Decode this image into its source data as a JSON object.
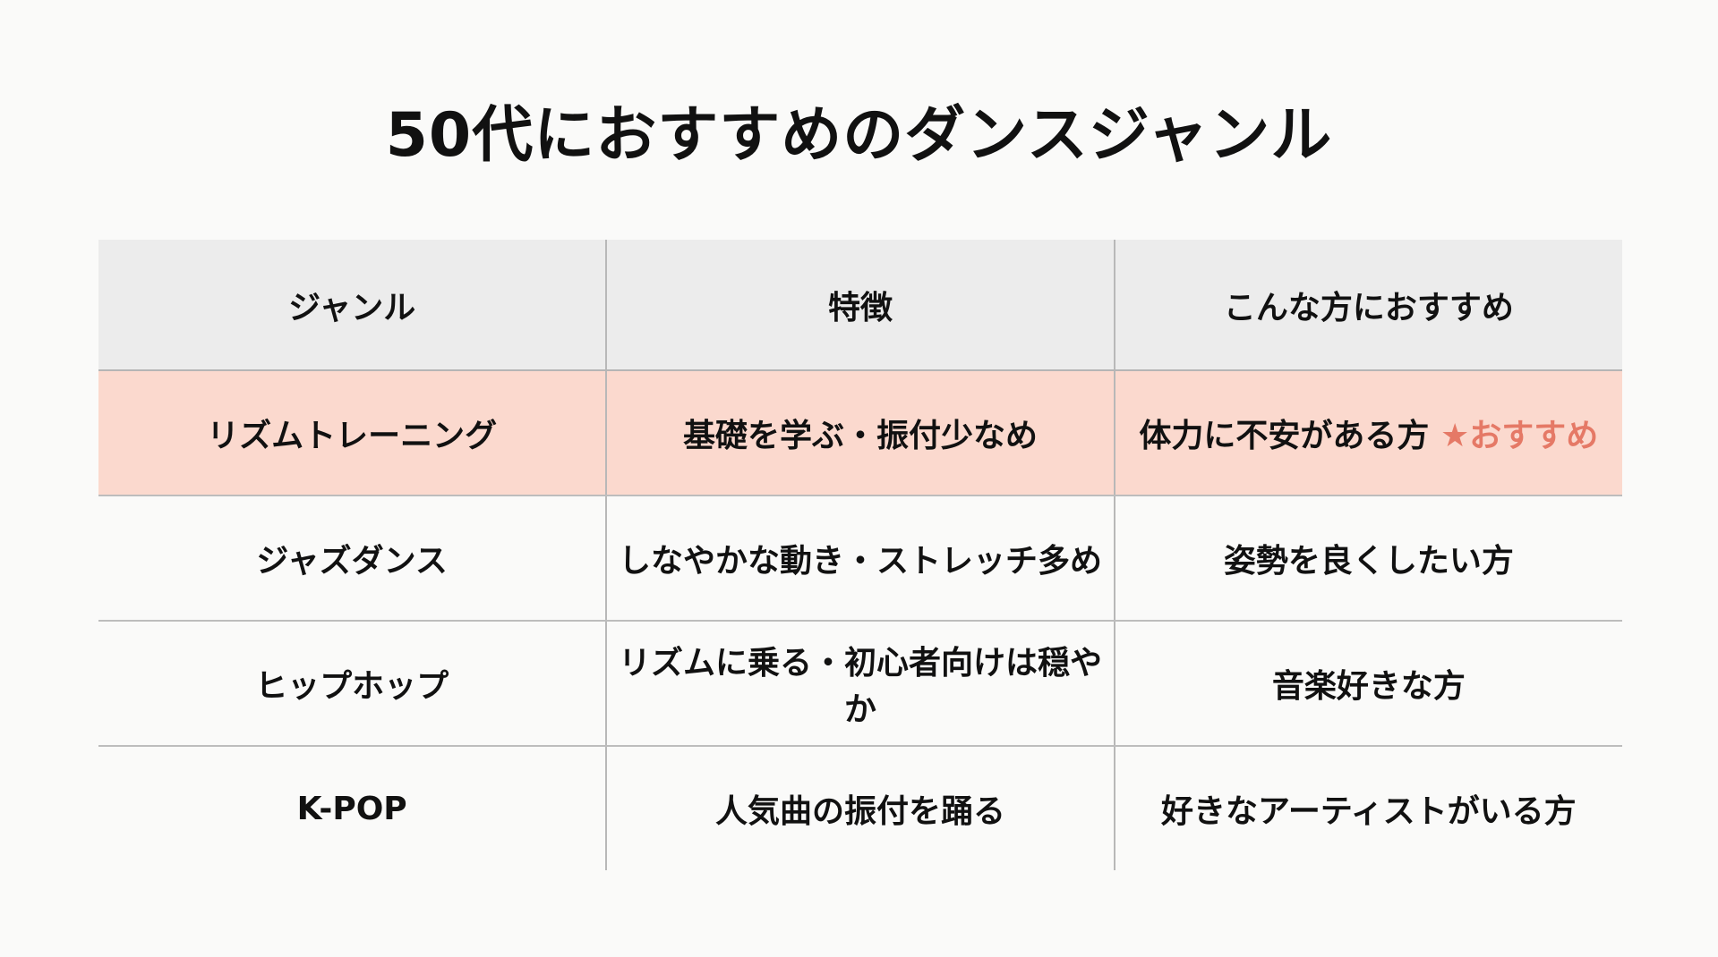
{
  "title": "50代におすすめのダンスジャンル",
  "table": {
    "headers": [
      "ジャンル",
      "特徴",
      "こんな方におすすめ"
    ],
    "rows": [
      {
        "genre": "リズムトレーニング",
        "feature": "基礎を学ぶ・振付少なめ",
        "recommend": "体力に不安がある方",
        "badge": "★おすすめ",
        "highlighted": true
      },
      {
        "genre": "ジャズダンス",
        "feature": "しなやかな動き・ストレッチ多め",
        "recommend": "姿勢を良くしたい方"
      },
      {
        "genre": "ヒップホップ",
        "feature": "リズムに乗る・初心者向けは穏やか",
        "recommend": "音楽好きな方"
      },
      {
        "genre": "K-POP",
        "feature": "人気曲の振付を踊る",
        "recommend": "好きなアーティストがいる方"
      }
    ]
  },
  "colors": {
    "highlight_row": "#fbd9ce",
    "badge": "#e57966",
    "header_bg": "#ececec"
  }
}
